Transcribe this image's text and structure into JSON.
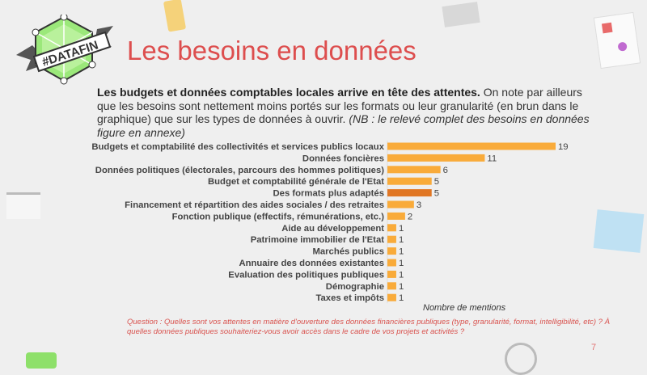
{
  "logo": {
    "text": "#DATAFIN"
  },
  "title": "Les besoins en données",
  "intro": {
    "bold": "Les budgets et données comptables locales arrive en tête des attentes.",
    "normal": " On note par ailleurs que les besoins sont nettement moins portés sur les formats ou leur granularité (en brun dans le graphique) que sur les types de données à ouvrir. ",
    "italic": "(NB : le relevé complet des besoins en données figure en annexe)"
  },
  "chart_data": {
    "type": "bar",
    "orientation": "horizontal",
    "categories": [
      "Budgets et comptabilité des collectivités et services publics locaux",
      "Données foncières",
      "Données politiques (électorales, parcours des hommes politiques)",
      "Budget et comptabilité générale de l'Etat",
      "Des formats plus adaptés",
      "Financement et répartition des aides sociales / des retraites",
      "Fonction publique (effectifs, rémunérations, etc.)",
      "Aide au développement",
      "Patrimoine immobilier de l'Etat",
      "Marchés publics",
      "Annuaire des données existantes",
      "Evaluation des politiques publiques",
      "Démographie",
      "Taxes et impôts"
    ],
    "values": [
      19,
      11,
      6,
      5,
      5,
      3,
      2,
      1,
      1,
      1,
      1,
      1,
      1,
      1
    ],
    "highlight": [
      false,
      false,
      false,
      false,
      true,
      false,
      false,
      false,
      false,
      false,
      false,
      false,
      false,
      false
    ],
    "xlabel": "Nombre de mentions",
    "data_labels": true,
    "grid": false,
    "colors": {
      "default": "#f9ab3a",
      "highlight": "#e07624"
    }
  },
  "question": "Question : Quelles sont vos attentes en matière d'ouverture des données financières publiques (type, granularité, format, intelligibilité, etc) ? À quelles données publiques souhaiteriez-vous avoir accès dans le cadre de vos projets et activités ?",
  "page_number": "7"
}
